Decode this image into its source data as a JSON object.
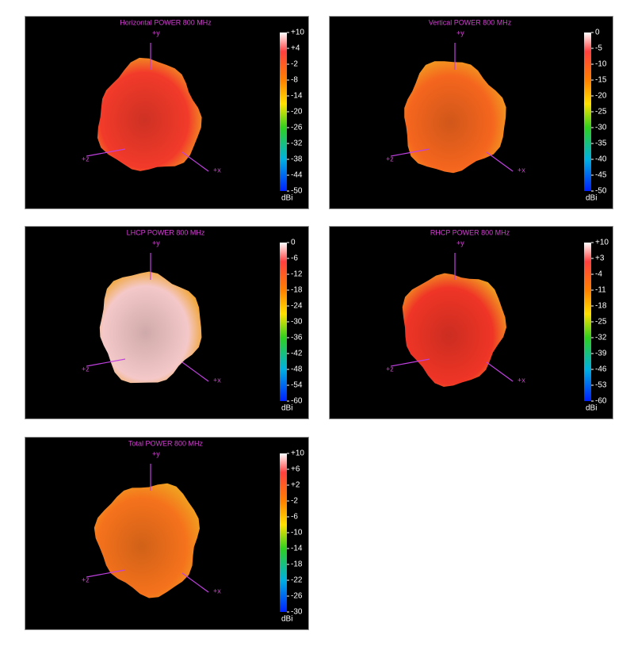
{
  "chart_data": [
    {
      "type": "radiation-pattern",
      "title": "Horizontal POWER 800  MHz",
      "color": "#f23a2a",
      "colorbar_label": "dBi",
      "axis_labels": [
        "+y",
        "+z",
        "+x"
      ],
      "clim": [
        -50,
        10
      ],
      "cticks": [
        {
          "value": 10,
          "label": "+10"
        },
        {
          "value": 4,
          "label": "+4"
        },
        -2,
        -8,
        -14,
        -20,
        -26,
        -32,
        -38,
        -44,
        -50
      ]
    },
    {
      "type": "radiation-pattern",
      "title": "Vertical POWER 800  MHz",
      "color": "#f5661e",
      "colorbar_label": "dBi",
      "axis_labels": [
        "+y",
        "+z",
        "+x"
      ],
      "clim": [
        -50,
        0
      ],
      "cticks": [
        0,
        -5,
        -10,
        -15,
        -20,
        -25,
        -30,
        -35,
        -40,
        -45,
        -50
      ]
    },
    {
      "type": "radiation-pattern",
      "title": "LHCP POWER 800  MHz",
      "color": "#f4c8c8",
      "colorbar_label": "dBi",
      "axis_labels": [
        "+y",
        "+z",
        "+x"
      ],
      "clim": [
        -60,
        0
      ],
      "cticks": [
        0,
        -6,
        -12,
        -18,
        -24,
        -30,
        -36,
        -42,
        -48,
        -54,
        -60
      ]
    },
    {
      "type": "radiation-pattern",
      "title": "RHCP POWER 800  MHz",
      "color": "#ef3526",
      "colorbar_label": "dBi",
      "axis_labels": [
        "+y",
        "+z",
        "+x"
      ],
      "clim": [
        -60,
        10
      ],
      "cticks": [
        {
          "value": 10,
          "label": "+10"
        },
        {
          "value": 3,
          "label": "+3"
        },
        -4,
        -11,
        -18,
        -25,
        -32,
        -39,
        -46,
        -53,
        -60
      ]
    },
    {
      "type": "radiation-pattern",
      "title": "Total POWER 800  MHz",
      "color": "#f5721c",
      "colorbar_label": "dBi",
      "axis_labels": [
        "+y",
        "+z",
        "+x"
      ],
      "clim": [
        -30,
        10
      ],
      "cticks": [
        {
          "value": 10,
          "label": "+10"
        },
        {
          "value": 6,
          "label": "+6"
        },
        {
          "value": 2,
          "label": "+2"
        },
        -2,
        -6,
        -10,
        -14,
        -18,
        -22,
        -26,
        -30
      ]
    }
  ]
}
